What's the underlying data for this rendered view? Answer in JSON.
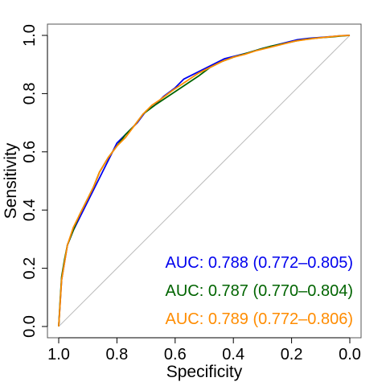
{
  "chart_data": {
    "type": "line",
    "title": "",
    "xlabel": "Specificity",
    "ylabel": "Sensitivity",
    "x_reversed": true,
    "xlim": [
      1.0,
      0.0
    ],
    "ylim": [
      0.0,
      1.0
    ],
    "x_ticks": [
      "1.0",
      "0.8",
      "0.6",
      "0.4",
      "0.2",
      "0.0"
    ],
    "y_ticks": [
      "0.0",
      "0.2",
      "0.4",
      "0.6",
      "0.8",
      "1.0"
    ],
    "diagonal_reference": true,
    "grid": false,
    "series": [
      {
        "color": "#0000ee",
        "x": [
          1.0,
          0.995,
          0.99,
          0.98,
          0.97,
          0.95,
          0.93,
          0.9,
          0.88,
          0.85,
          0.82,
          0.8,
          0.76,
          0.73,
          0.7,
          0.67,
          0.64,
          0.6,
          0.57,
          0.55,
          0.51,
          0.47,
          0.43,
          0.39,
          0.35,
          0.3,
          0.26,
          0.22,
          0.18,
          0.14,
          0.1,
          0.06,
          0.03,
          0.0
        ],
        "y": [
          0.0,
          0.08,
          0.16,
          0.22,
          0.28,
          0.33,
          0.37,
          0.43,
          0.47,
          0.53,
          0.59,
          0.63,
          0.67,
          0.7,
          0.74,
          0.76,
          0.79,
          0.82,
          0.85,
          0.86,
          0.88,
          0.9,
          0.92,
          0.93,
          0.94,
          0.955,
          0.965,
          0.975,
          0.985,
          0.99,
          0.993,
          0.996,
          0.999,
          1.0
        ]
      },
      {
        "color": "#006400",
        "x": [
          1.0,
          0.995,
          0.99,
          0.98,
          0.97,
          0.95,
          0.93,
          0.9,
          0.88,
          0.86,
          0.83,
          0.8,
          0.77,
          0.74,
          0.71,
          0.67,
          0.64,
          0.61,
          0.58,
          0.55,
          0.52,
          0.48,
          0.44,
          0.4,
          0.35,
          0.31,
          0.27,
          0.22,
          0.18,
          0.14,
          0.1,
          0.06,
          0.03,
          0.0
        ],
        "y": [
          0.0,
          0.09,
          0.17,
          0.23,
          0.28,
          0.33,
          0.38,
          0.44,
          0.48,
          0.53,
          0.58,
          0.62,
          0.66,
          0.69,
          0.73,
          0.76,
          0.78,
          0.8,
          0.82,
          0.84,
          0.86,
          0.89,
          0.91,
          0.925,
          0.94,
          0.952,
          0.963,
          0.973,
          0.982,
          0.988,
          0.992,
          0.995,
          0.998,
          1.0
        ]
      },
      {
        "color": "#ff8c00",
        "x": [
          1.0,
          0.995,
          0.99,
          0.98,
          0.97,
          0.95,
          0.93,
          0.9,
          0.88,
          0.86,
          0.83,
          0.8,
          0.77,
          0.74,
          0.71,
          0.68,
          0.65,
          0.61,
          0.58,
          0.55,
          0.52,
          0.48,
          0.44,
          0.4,
          0.36,
          0.32,
          0.27,
          0.23,
          0.19,
          0.15,
          0.11,
          0.07,
          0.03,
          0.0
        ],
        "y": [
          0.0,
          0.08,
          0.16,
          0.22,
          0.28,
          0.34,
          0.38,
          0.44,
          0.48,
          0.53,
          0.58,
          0.62,
          0.65,
          0.69,
          0.73,
          0.76,
          0.78,
          0.81,
          0.83,
          0.85,
          0.87,
          0.89,
          0.91,
          0.925,
          0.935,
          0.948,
          0.96,
          0.97,
          0.98,
          0.986,
          0.991,
          0.995,
          0.999,
          1.0
        ]
      }
    ],
    "annotations": [
      {
        "prefix": "AUC: ",
        "value": "0.788 (0.772–0.805)",
        "color": "#0000ee"
      },
      {
        "prefix": "AUC: ",
        "value": "0.787 (0.770–0.804)",
        "color": "#006400"
      },
      {
        "prefix": "AUC: ",
        "value": "0.789 (0.772–0.806)",
        "color": "#ff8c00"
      }
    ],
    "colors": {
      "frame": "#555555",
      "diagonal": "#bbbbbb",
      "axis": "#000000"
    }
  }
}
